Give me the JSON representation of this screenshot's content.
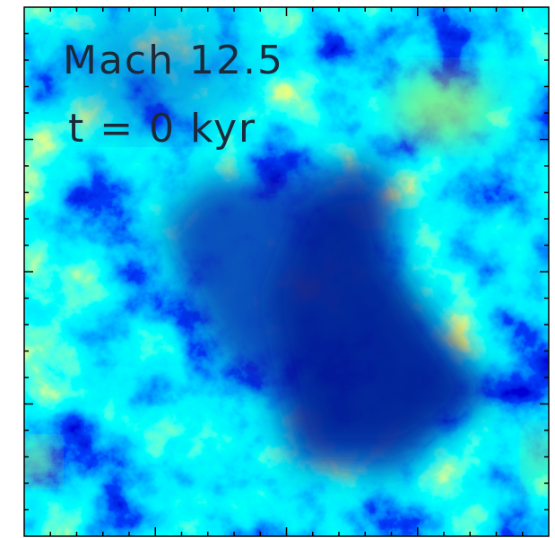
{
  "annotations": {
    "mach": "Mach 12.5",
    "time": "t = 0 kyr"
  }
}
